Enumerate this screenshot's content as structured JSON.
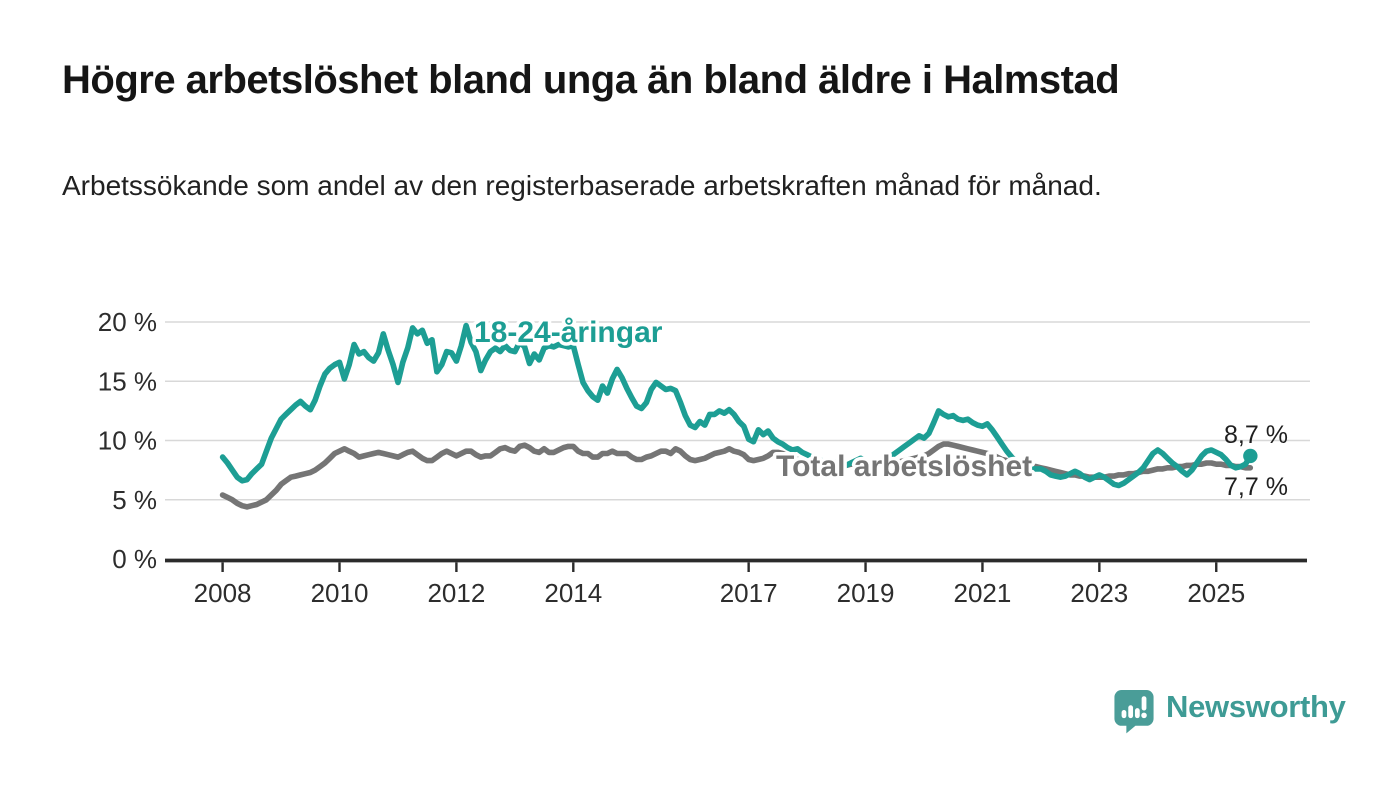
{
  "title": "Högre arbetslöshet bland unga än bland äldre i Halmstad",
  "subtitle": "Arbetssökande som andel av den registerbaserade arbetskraften månad för månad.",
  "footer": {
    "brand": "Newsworthy",
    "logo_icon": "bar-chart-speech-bubble"
  },
  "colors": {
    "youth_line": "#1d9e94",
    "total_line": "#757575",
    "grid": "#d8d8d8",
    "axis": "#2b2b2b",
    "tick_text": "#2d2d2d",
    "title_text": "#151515",
    "label_halo": "#ffffff",
    "brand_teal": "#3e9b95",
    "logo_fill": "#4a9d98"
  },
  "chart_data": {
    "type": "line",
    "title": "Högre arbetslöshet bland unga än bland äldre i Halmstad",
    "subtitle": "Arbetssökande som andel av den registerbaserade arbetskraften månad för månad.",
    "unit": "%",
    "frequency": "monthly",
    "x_start": "2008-01",
    "x_end": "2025-08",
    "ylim": [
      0,
      21
    ],
    "grid": "horizontal",
    "legend_position": "inline-annotations",
    "y_axis": {
      "ticks": [
        {
          "value": 0,
          "label": "0 %"
        },
        {
          "value": 5,
          "label": "5 %"
        },
        {
          "value": 10,
          "label": "10 %"
        },
        {
          "value": 15,
          "label": "15 %"
        },
        {
          "value": 20,
          "label": "20 %"
        }
      ]
    },
    "x_axis": {
      "ticks": [
        {
          "value": 2008,
          "label": "2008"
        },
        {
          "value": 2010,
          "label": "2010"
        },
        {
          "value": 2012,
          "label": "2012"
        },
        {
          "value": 2014,
          "label": "2014"
        },
        {
          "value": 2017,
          "label": "2017"
        },
        {
          "value": 2019,
          "label": "2019"
        },
        {
          "value": 2021,
          "label": "2021"
        },
        {
          "value": 2023,
          "label": "2023"
        },
        {
          "value": 2025,
          "label": "2025"
        }
      ]
    },
    "series": [
      {
        "name": "18-24-åringar",
        "color": "#1d9e94",
        "end_label": "8,7 %",
        "end_value": 8.7,
        "end_dot": true,
        "values": [
          8.6,
          8.1,
          7.5,
          6.9,
          6.6,
          6.7,
          7.2,
          7.6,
          8.0,
          9.1,
          10.2,
          11.0,
          11.8,
          12.2,
          12.6,
          13.0,
          13.3,
          12.9,
          12.6,
          13.4,
          14.6,
          15.6,
          16.1,
          16.4,
          16.6,
          15.2,
          16.4,
          18.1,
          17.3,
          17.5,
          17.0,
          16.7,
          17.4,
          19.0,
          17.6,
          16.4,
          14.9,
          16.6,
          17.8,
          19.5,
          19.0,
          19.3,
          18.2,
          18.5,
          15.8,
          16.4,
          17.5,
          17.4,
          16.7,
          18.0,
          19.7,
          18.3,
          17.5,
          15.9,
          16.8,
          17.5,
          17.8,
          17.5,
          18.0,
          17.6,
          17.5,
          18.3,
          17.9,
          16.5,
          17.3,
          16.8,
          17.8,
          18.0,
          17.9,
          18.1,
          18.0,
          17.9,
          18.0,
          16.4,
          14.9,
          14.2,
          13.7,
          13.4,
          14.6,
          14.0,
          15.2,
          16.0,
          15.3,
          14.4,
          13.6,
          12.9,
          12.7,
          13.2,
          14.3,
          14.9,
          14.6,
          14.3,
          14.4,
          14.2,
          13.2,
          12.1,
          11.3,
          11.1,
          11.6,
          11.3,
          12.2,
          12.2,
          12.5,
          12.3,
          12.6,
          12.2,
          11.6,
          11.2,
          10.1,
          9.9,
          10.9,
          10.5,
          10.8,
          10.2,
          9.9,
          9.7,
          9.4,
          9.2,
          9.3,
          9.0,
          8.8,
          8.6,
          8.4,
          8.3,
          8.1,
          8.0,
          8.2,
          8.0,
          7.9,
          8.1,
          8.3,
          8.5,
          8.2,
          8.0,
          7.9,
          8.1,
          8.3,
          8.6,
          8.9,
          9.2,
          9.5,
          9.8,
          10.1,
          10.4,
          10.2,
          10.6,
          11.5,
          12.5,
          12.2,
          12.0,
          12.1,
          11.8,
          11.7,
          11.8,
          11.5,
          11.3,
          11.2,
          11.4,
          10.9,
          10.3,
          9.7,
          9.1,
          8.6,
          8.2,
          7.9,
          7.7,
          7.6,
          7.6,
          7.6,
          7.4,
          7.1,
          7.0,
          6.9,
          7.0,
          7.2,
          7.4,
          7.2,
          6.9,
          6.7,
          6.9,
          7.1,
          6.9,
          6.6,
          6.3,
          6.2,
          6.4,
          6.7,
          7.0,
          7.3,
          7.7,
          8.3,
          8.9,
          9.2,
          8.9,
          8.5,
          8.1,
          7.8,
          7.4,
          7.1,
          7.5,
          8.1,
          8.7,
          9.1,
          9.2,
          9.0,
          8.8,
          8.4,
          7.9,
          7.7,
          7.8,
          8.0,
          8.7
        ]
      },
      {
        "name": "Total arbetslöshet",
        "color": "#757575",
        "end_label": "7,7 %",
        "end_value": 7.7,
        "end_dot": false,
        "values": [
          5.4,
          5.2,
          5.0,
          4.7,
          4.5,
          4.4,
          4.5,
          4.6,
          4.8,
          5.0,
          5.4,
          5.8,
          6.3,
          6.6,
          6.9,
          7.0,
          7.1,
          7.2,
          7.3,
          7.5,
          7.8,
          8.1,
          8.5,
          8.9,
          9.1,
          9.3,
          9.1,
          8.9,
          8.6,
          8.7,
          8.8,
          8.9,
          9.0,
          8.9,
          8.8,
          8.7,
          8.6,
          8.8,
          9.0,
          9.1,
          8.8,
          8.5,
          8.3,
          8.3,
          8.6,
          8.9,
          9.1,
          8.9,
          8.7,
          8.9,
          9.1,
          9.1,
          8.8,
          8.6,
          8.7,
          8.7,
          9.0,
          9.3,
          9.4,
          9.2,
          9.1,
          9.5,
          9.6,
          9.4,
          9.1,
          9.0,
          9.3,
          9.0,
          9.0,
          9.2,
          9.4,
          9.5,
          9.5,
          9.1,
          8.9,
          8.9,
          8.6,
          8.6,
          8.9,
          8.9,
          9.1,
          8.9,
          8.9,
          8.9,
          8.6,
          8.4,
          8.4,
          8.6,
          8.7,
          8.9,
          9.1,
          9.1,
          8.9,
          9.3,
          9.1,
          8.7,
          8.4,
          8.3,
          8.4,
          8.5,
          8.7,
          8.9,
          9.0,
          9.1,
          9.3,
          9.1,
          9.0,
          8.8,
          8.4,
          8.3,
          8.4,
          8.5,
          8.7,
          9.0,
          9.0,
          8.9,
          8.7,
          8.5,
          8.4,
          8.3,
          8.2,
          8.1,
          8.1,
          8.0,
          8.0,
          7.9,
          8.0,
          7.9,
          7.9,
          8.0,
          8.0,
          8.1,
          8.0,
          7.9,
          7.9,
          8.0,
          8.0,
          8.1,
          8.2,
          8.2,
          8.3,
          8.4,
          8.5,
          8.6,
          8.7,
          8.9,
          9.2,
          9.5,
          9.7,
          9.7,
          9.6,
          9.5,
          9.4,
          9.3,
          9.2,
          9.1,
          9.0,
          8.9,
          8.8,
          8.6,
          8.4,
          8.3,
          8.1,
          8.0,
          7.9,
          7.9,
          7.8,
          7.8,
          7.7,
          7.6,
          7.5,
          7.4,
          7.3,
          7.2,
          7.1,
          7.1,
          7.0,
          7.0,
          6.9,
          6.9,
          6.9,
          6.9,
          7.0,
          7.0,
          7.1,
          7.1,
          7.2,
          7.2,
          7.3,
          7.4,
          7.4,
          7.5,
          7.6,
          7.6,
          7.7,
          7.7,
          7.8,
          7.8,
          7.9,
          7.9,
          8.0,
          8.0,
          8.1,
          8.1,
          8.0,
          8.0,
          7.9,
          7.9,
          7.8,
          7.8,
          7.7,
          7.7
        ]
      }
    ]
  }
}
